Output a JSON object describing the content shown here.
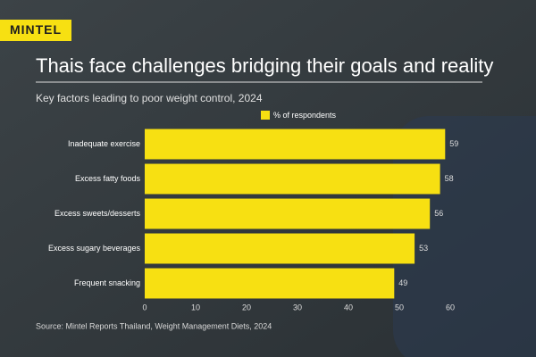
{
  "chart_data": {
    "type": "bar",
    "orientation": "horizontal",
    "brand": "MINTEL",
    "title": "Thais face challenges bridging their goals and reality",
    "subtitle": "Key factors leading to poor weight control, 2024",
    "source": "Source: Mintel Reports Thailand, Weight Management Diets, 2024",
    "categories": [
      "Inadequate exercise",
      "Excess fatty foods",
      "Excess sweets/desserts",
      "Excess sugary beverages",
      "Frequent snacking"
    ],
    "series": [
      {
        "name": "% of respondents",
        "color": "#f7e012",
        "values": [
          59,
          58,
          56,
          53,
          49
        ]
      }
    ],
    "xlim": [
      0,
      60
    ],
    "xticks": [
      0,
      10,
      20,
      30,
      40,
      50,
      60
    ]
  }
}
